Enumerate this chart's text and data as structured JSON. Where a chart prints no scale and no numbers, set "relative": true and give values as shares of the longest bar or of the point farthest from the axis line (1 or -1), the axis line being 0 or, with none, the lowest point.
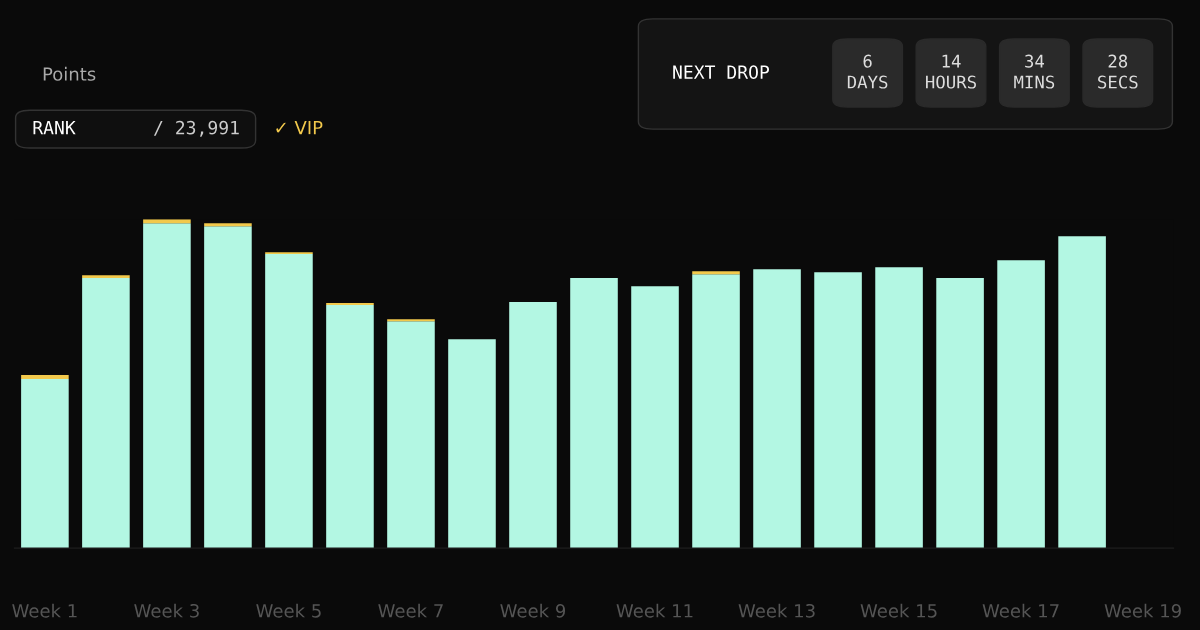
{
  "chart_data": {
    "type": "bar",
    "title": "Points",
    "relative": true,
    "stacked": true,
    "categories": [
      "Week 1",
      null,
      "Week 3",
      null,
      "Week 5",
      null,
      "Week 7",
      null,
      "Week 9",
      null,
      "Week 11",
      null,
      "Week 13",
      null,
      "Week 15",
      null,
      "Week 17",
      null,
      "Week 19"
    ],
    "series": [
      {
        "color": "#b3f7e3",
        "values": [
          0.514,
          0.821,
          0.988,
          0.979,
          0.894,
          0.739,
          0.69,
          0.635,
          0.748,
          0.821,
          0.796,
          0.833,
          0.848,
          0.839,
          0.854,
          0.821,
          0.875,
          0.948,
          null
        ]
      },
      {
        "color": "#f2c94c",
        "values": [
          0.012,
          0.009,
          0.012,
          0.009,
          0.006,
          0.006,
          0.006,
          null,
          null,
          null,
          null,
          0.009,
          null,
          null,
          null,
          null,
          null,
          null,
          null
        ]
      }
    ],
    "annotations": [
      "RANK",
      "/ 23,991",
      "✓ VIP",
      "NEXT DROP",
      "6\nDAYS",
      "14\nHOURS",
      "34\nMINS",
      "28\nSECS"
    ],
    "grid": false,
    "legend": false
  }
}
